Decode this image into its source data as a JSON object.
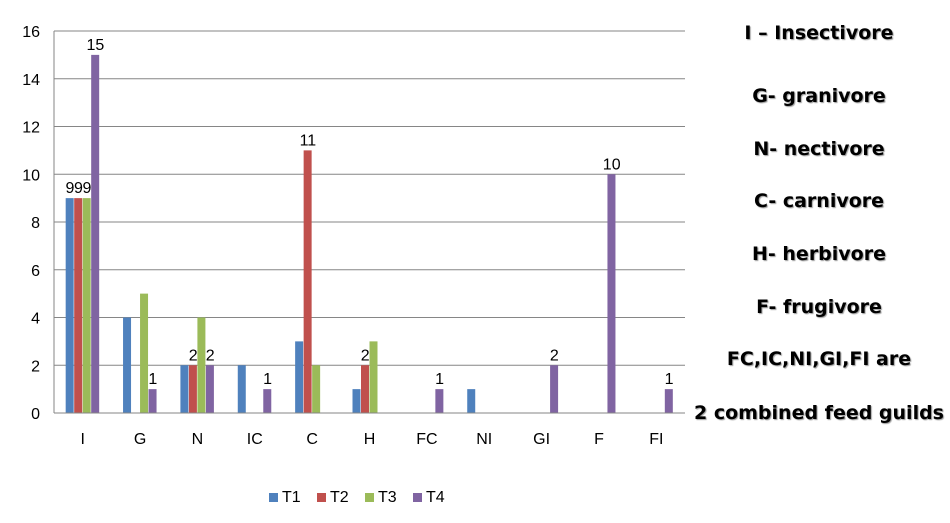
{
  "chart_data": {
    "type": "bar",
    "categories": [
      "I",
      "G",
      "N",
      "IC",
      "C",
      "H",
      "FC",
      "NI",
      "GI",
      "F",
      "FI"
    ],
    "series": [
      {
        "name": "T1",
        "color": "#4F81BD",
        "values": [
          9,
          4,
          2,
          2,
          3,
          1,
          0,
          1,
          0,
          0,
          0
        ]
      },
      {
        "name": "T2",
        "color": "#C0504D",
        "values": [
          9,
          0,
          2,
          0,
          11,
          2,
          0,
          0,
          0,
          0,
          0
        ]
      },
      {
        "name": "T3",
        "color": "#9BBB59",
        "values": [
          9,
          5,
          4,
          0,
          2,
          3,
          0,
          0,
          0,
          0,
          0
        ]
      },
      {
        "name": "T4",
        "color": "#8064A2",
        "values": [
          15,
          1,
          2,
          1,
          0,
          0,
          1,
          0,
          2,
          10,
          1
        ]
      }
    ],
    "data_labels": [
      {
        "category": "I",
        "series": "T1",
        "text": "9"
      },
      {
        "category": "I",
        "series": "T2",
        "text": "9"
      },
      {
        "category": "I",
        "series": "T3",
        "text": "9"
      },
      {
        "category": "I",
        "series": "T4",
        "text": "15"
      },
      {
        "category": "G",
        "series": "T4",
        "text": "1"
      },
      {
        "category": "N",
        "series": "T2",
        "text": "2"
      },
      {
        "category": "N",
        "series": "T4",
        "text": "2"
      },
      {
        "category": "IC",
        "series": "T4",
        "text": "1"
      },
      {
        "category": "C",
        "series": "T2",
        "text": "11"
      },
      {
        "category": "H",
        "series": "T2",
        "text": "2"
      },
      {
        "category": "FC",
        "series": "T4",
        "text": "1"
      },
      {
        "category": "GI",
        "series": "T4",
        "text": "2"
      },
      {
        "category": "F",
        "series": "T4",
        "text": "10"
      },
      {
        "category": "FI",
        "series": "T4",
        "text": "1"
      }
    ],
    "ylim": [
      0,
      16
    ],
    "yticks": [
      0,
      2,
      4,
      6,
      8,
      10,
      12,
      14,
      16
    ],
    "grid": true,
    "legend": "bottom",
    "title": "",
    "xlabel": "",
    "ylabel": ""
  },
  "notes": [
    "I – Insectivore",
    "G- granivore",
    "N- nectivore",
    "C- carnivore",
    "H- herbivore",
    "F- frugivore",
    "FC,IC,NI,GI,FI are",
    "2 combined feed guilds"
  ]
}
